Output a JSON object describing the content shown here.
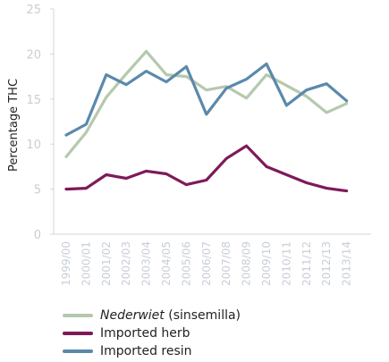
{
  "chart_data": {
    "type": "line",
    "ylabel": "Percentage THC",
    "xlabel": "",
    "ylim": [
      0,
      25
    ],
    "yticks": [
      0,
      5,
      10,
      15,
      20,
      25
    ],
    "grid": false,
    "legend_position": "bottom-left",
    "categories": [
      "1999/00",
      "2000/01",
      "2001/02",
      "2002/03",
      "2003/04",
      "2004/05",
      "2005/06",
      "2006/07",
      "2007/08",
      "2008/09",
      "2009/10",
      "2010/11",
      "2011/12",
      "2012/13",
      "2013/14"
    ],
    "series": [
      {
        "name": "Nederwiet (sinsemilla)",
        "name_italic_part": "Nederwiet",
        "name_rest": " (sinsemilla)",
        "color": "#b5c9ad",
        "values": [
          8.6,
          11.3,
          15.2,
          17.8,
          20.3,
          17.7,
          17.5,
          16.0,
          16.4,
          15.1,
          17.7,
          16.5,
          15.3,
          13.5,
          14.5
        ]
      },
      {
        "name": "Imported herb",
        "color": "#7d1a5a",
        "values": [
          5.0,
          5.1,
          6.6,
          6.2,
          7.0,
          6.7,
          5.5,
          6.0,
          8.4,
          9.8,
          7.5,
          6.6,
          5.7,
          5.1,
          4.8
        ]
      },
      {
        "name": "Imported resin",
        "color": "#5b89ab",
        "values": [
          11.0,
          12.2,
          17.7,
          16.6,
          18.1,
          16.9,
          18.6,
          13.3,
          16.2,
          17.2,
          18.9,
          14.3,
          16.0,
          16.7,
          14.8
        ]
      }
    ]
  }
}
